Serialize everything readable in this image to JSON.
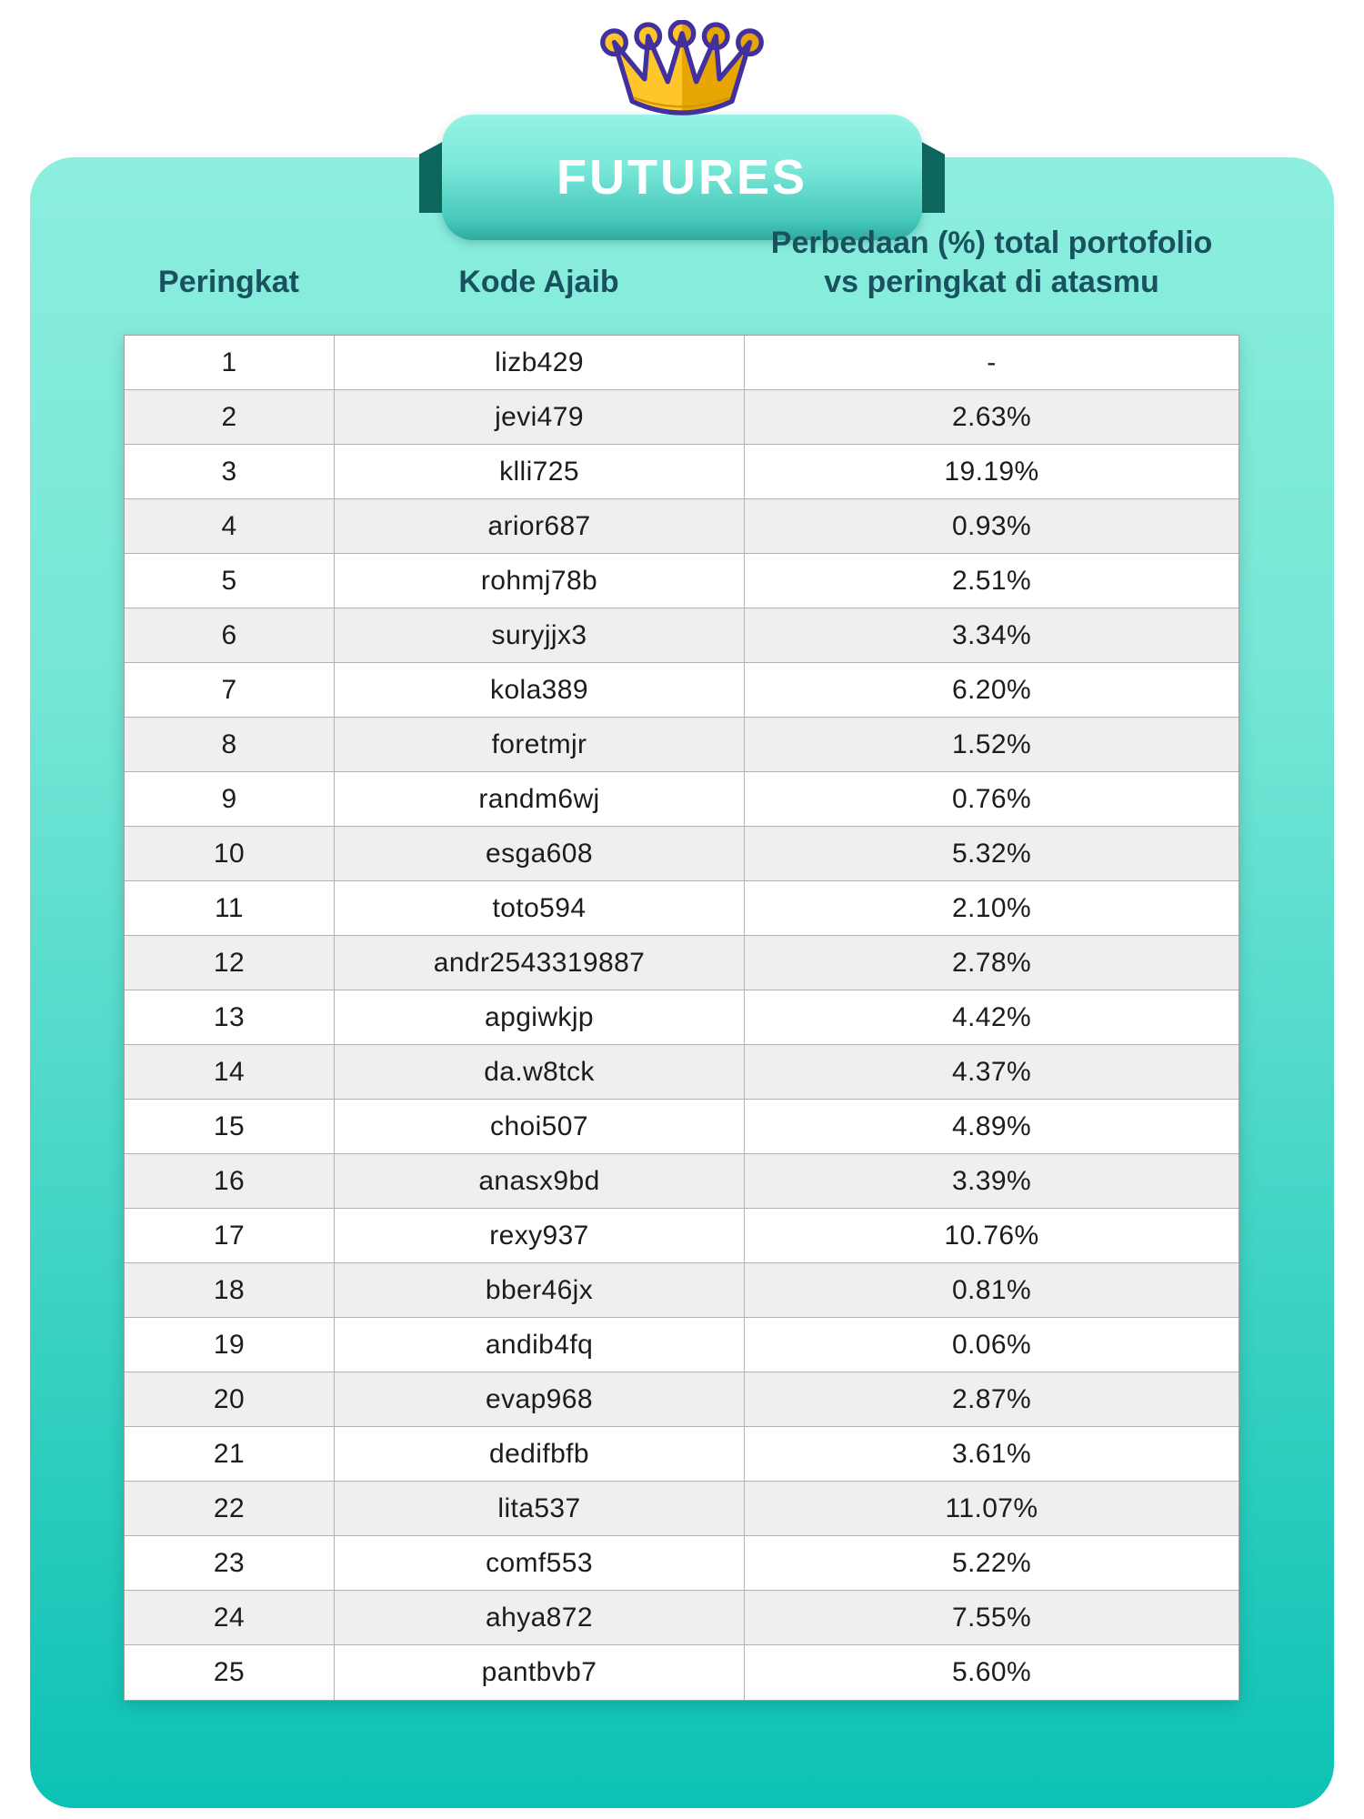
{
  "banner": {
    "title": "FUTURES"
  },
  "colors": {
    "card_gradient_top": "#8ceede",
    "card_gradient_bottom": "#0cc2b4",
    "ribbon_fold_dark": "#0e675e",
    "header_text": "#19525e",
    "row_alt_gray": "#efefef",
    "cell_text": "#1c1c1c",
    "crown_gold": "#ffc62b",
    "crown_gold_dark": "#e8a603",
    "crown_outline": "#41309e",
    "ribbon_text": "#ffffff"
  },
  "table": {
    "headers": {
      "rank": "Peringkat",
      "code": "Kode Ajaib",
      "diff_line1": "Perbedaan (%) total portofolio",
      "diff_line2": "vs peringkat di atasmu"
    },
    "rows": [
      {
        "rank": "1",
        "code": "lizb429",
        "diff": "-"
      },
      {
        "rank": "2",
        "code": "jevi479",
        "diff": "2.63%"
      },
      {
        "rank": "3",
        "code": "klli725",
        "diff": "19.19%"
      },
      {
        "rank": "4",
        "code": "arior687",
        "diff": "0.93%"
      },
      {
        "rank": "5",
        "code": "rohmj78b",
        "diff": "2.51%"
      },
      {
        "rank": "6",
        "code": "suryjjx3",
        "diff": "3.34%"
      },
      {
        "rank": "7",
        "code": "kola389",
        "diff": "6.20%"
      },
      {
        "rank": "8",
        "code": "foretmjr",
        "diff": "1.52%"
      },
      {
        "rank": "9",
        "code": "randm6wj",
        "diff": "0.76%"
      },
      {
        "rank": "10",
        "code": "esga608",
        "diff": "5.32%"
      },
      {
        "rank": "11",
        "code": "toto594",
        "diff": "2.10%"
      },
      {
        "rank": "12",
        "code": "andr2543319887",
        "diff": "2.78%"
      },
      {
        "rank": "13",
        "code": "apgiwkjp",
        "diff": "4.42%"
      },
      {
        "rank": "14",
        "code": "da.w8tck",
        "diff": "4.37%"
      },
      {
        "rank": "15",
        "code": "choi507",
        "diff": "4.89%"
      },
      {
        "rank": "16",
        "code": "anasx9bd",
        "diff": "3.39%"
      },
      {
        "rank": "17",
        "code": "rexy937",
        "diff": "10.76%"
      },
      {
        "rank": "18",
        "code": "bber46jx",
        "diff": "0.81%"
      },
      {
        "rank": "19",
        "code": "andib4fq",
        "diff": "0.06%"
      },
      {
        "rank": "20",
        "code": "evap968",
        "diff": "2.87%"
      },
      {
        "rank": "21",
        "code": "dedifbfb",
        "diff": "3.61%"
      },
      {
        "rank": "22",
        "code": "lita537",
        "diff": "11.07%"
      },
      {
        "rank": "23",
        "code": "comf553",
        "diff": "5.22%"
      },
      {
        "rank": "24",
        "code": "ahya872",
        "diff": "7.55%"
      },
      {
        "rank": "25",
        "code": "pantbvb7",
        "diff": "5.60%"
      }
    ]
  }
}
